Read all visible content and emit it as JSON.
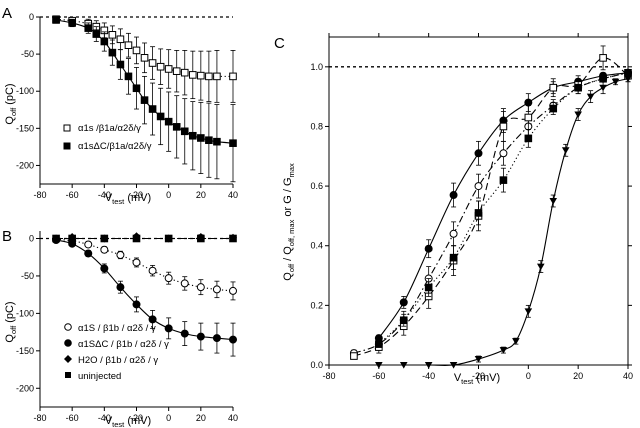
{
  "chart_data": [
    {
      "type": "scatter",
      "panel_label": "A",
      "xlabel": {
        "main": "V",
        "sub": "test",
        "unit": " (mV)"
      },
      "ylabel": {
        "main": "Q",
        "sub": "off",
        "unit": " (pC)"
      },
      "xlim": [
        -80,
        40
      ],
      "ylim": [
        -225,
        0
      ],
      "xticks": [
        -80,
        -60,
        -40,
        -20,
        0,
        20,
        40
      ],
      "yticks": [
        0,
        -50,
        -100,
        -150,
        -200
      ],
      "zero_line": true,
      "legend_position": "bottom-left",
      "series": [
        {
          "name": "α1s /β1a/α2δ/γ",
          "marker": "open-square",
          "line": "dotted",
          "x": [
            -70,
            -60,
            -50,
            -45,
            -40,
            -35,
            -30,
            -25,
            -20,
            -15,
            -10,
            -5,
            0,
            5,
            10,
            15,
            20,
            25,
            30,
            40
          ],
          "y": [
            -3,
            -5,
            -9,
            -13,
            -18,
            -24,
            -30,
            -38,
            -45,
            -55,
            -62,
            -67,
            -70,
            -73,
            -75,
            -78,
            -79,
            -80,
            -80,
            -80
          ],
          "err": [
            2,
            4,
            6,
            8,
            10,
            12,
            14,
            16,
            18,
            20,
            22,
            24,
            26,
            28,
            30,
            32,
            33,
            34,
            35,
            35
          ]
        },
        {
          "name": "α1sΔC/β1a/α2δ/γ",
          "marker": "filled-square",
          "line": "solid",
          "x": [
            -70,
            -60,
            -50,
            -45,
            -40,
            -35,
            -30,
            -25,
            -20,
            -15,
            -10,
            -5,
            0,
            5,
            10,
            15,
            20,
            25,
            30,
            40
          ],
          "y": [
            -4,
            -8,
            -15,
            -23,
            -33,
            -48,
            -64,
            -80,
            -96,
            -112,
            -124,
            -134,
            -141,
            -148,
            -154,
            -160,
            -163,
            -166,
            -168,
            -170
          ],
          "err": [
            3,
            5,
            7,
            10,
            13,
            17,
            20,
            24,
            28,
            32,
            35,
            38,
            40,
            42,
            44,
            46,
            48,
            50,
            50,
            52
          ]
        }
      ]
    },
    {
      "type": "scatter",
      "panel_label": "B",
      "xlabel": {
        "main": "V",
        "sub": "test",
        "unit": " (mV)"
      },
      "ylabel": {
        "main": "Q",
        "sub": "off",
        "unit": " (pC)"
      },
      "xlim": [
        -80,
        40
      ],
      "ylim": [
        -225,
        10
      ],
      "xticks": [
        -80,
        -60,
        -40,
        -20,
        0,
        20,
        40
      ],
      "yticks": [
        0,
        -50,
        -100,
        -150,
        -200
      ],
      "zero_line": true,
      "legend_position": "bottom-left",
      "series": [
        {
          "name": "α1S / β1b / α2δ / γ",
          "marker": "open-circle",
          "line": "dotted",
          "x": [
            -70,
            -60,
            -50,
            -40,
            -30,
            -20,
            -10,
            0,
            10,
            20,
            30,
            40
          ],
          "y": [
            -1,
            -3,
            -8,
            -15,
            -22,
            -32,
            -43,
            -53,
            -60,
            -65,
            -68,
            -70
          ],
          "err": [
            1,
            2,
            3,
            4,
            5,
            6,
            7,
            8,
            9,
            10,
            11,
            12
          ]
        },
        {
          "name": "α1SΔC / β1b / α2δ / γ",
          "marker": "filled-circle",
          "line": "solid",
          "x": [
            -70,
            -60,
            -50,
            -40,
            -30,
            -20,
            -10,
            0,
            10,
            20,
            30,
            40
          ],
          "y": [
            -2,
            -7,
            -20,
            -40,
            -65,
            -88,
            -108,
            -120,
            -127,
            -131,
            -133,
            -135
          ],
          "err": [
            1,
            2,
            4,
            6,
            8,
            10,
            12,
            14,
            16,
            18,
            20,
            22
          ]
        },
        {
          "name": "H2O / β1b / α2δ / γ",
          "marker": "filled-diamond",
          "line": "none",
          "x": [
            -70,
            -60,
            -40,
            -20,
            0,
            20,
            40
          ],
          "y": [
            0,
            2,
            0,
            3,
            0,
            2,
            1
          ],
          "err": [
            1,
            2,
            1,
            2,
            1,
            3,
            2
          ]
        },
        {
          "name": "uninjected",
          "marker": "filled-square",
          "line": "dashed",
          "x": [
            -70,
            -60,
            -40,
            -20,
            0,
            20,
            40
          ],
          "y": [
            0,
            0,
            0,
            0,
            0,
            0,
            0
          ],
          "err": [
            1,
            1,
            1,
            1,
            1,
            1,
            1
          ]
        }
      ]
    },
    {
      "type": "scatter",
      "panel_label": "C",
      "xlabel": {
        "main": "V",
        "sub": "test",
        "unit": " (mV)"
      },
      "ylabel": {
        "p1": "Q",
        "s1": "off",
        "p2": " / Q",
        "s2": "off, max",
        "p3": "  or  G / G",
        "s3": "max"
      },
      "xlim": [
        -80,
        40
      ],
      "ylim": [
        0,
        1.1
      ],
      "xticks": [
        -80,
        -60,
        -40,
        -20,
        0,
        20,
        40
      ],
      "yticks": [
        0.0,
        0.2,
        0.4,
        0.6,
        0.8,
        1.0
      ],
      "reference_line_y": 1.0,
      "series": [
        {
          "marker": "filled-circle",
          "line": "solid",
          "x": [
            -60,
            -50,
            -40,
            -30,
            -20,
            -10,
            0,
            10,
            20,
            30,
            40
          ],
          "y": [
            0.09,
            0.21,
            0.39,
            0.57,
            0.71,
            0.82,
            0.88,
            0.93,
            0.95,
            0.97,
            0.98
          ],
          "err": [
            0.01,
            0.02,
            0.03,
            0.04,
            0.04,
            0.04,
            0.03,
            0.02,
            0.02,
            0.01,
            0.01
          ]
        },
        {
          "marker": "open-circle",
          "line": "dash-dot",
          "x": [
            -70,
            -60,
            -50,
            -40,
            -30,
            -20,
            -10,
            0,
            10,
            20,
            30,
            40
          ],
          "y": [
            0.04,
            0.07,
            0.15,
            0.29,
            0.44,
            0.6,
            0.71,
            0.8,
            0.87,
            0.93,
            0.96,
            0.98
          ],
          "err": [
            0.01,
            0.02,
            0.03,
            0.04,
            0.04,
            0.04,
            0.04,
            0.03,
            0.02,
            0.02,
            0.01,
            0.01
          ]
        },
        {
          "marker": "open-square",
          "line": "dashed",
          "x": [
            -70,
            -60,
            -50,
            -40,
            -30,
            -20,
            -10,
            0,
            10,
            20,
            30,
            40
          ],
          "y": [
            0.03,
            0.06,
            0.13,
            0.23,
            0.35,
            0.5,
            0.8,
            0.83,
            0.93,
            0.94,
            1.03,
            0.97
          ],
          "err": [
            0.01,
            0.02,
            0.03,
            0.04,
            0.05,
            0.05,
            0.05,
            0.04,
            0.03,
            0.02,
            0.04,
            0.02
          ]
        },
        {
          "marker": "filled-square",
          "line": "dotted",
          "x": [
            -60,
            -50,
            -40,
            -30,
            -20,
            -10,
            0,
            10,
            20,
            30,
            40
          ],
          "y": [
            0.07,
            0.15,
            0.26,
            0.36,
            0.51,
            0.62,
            0.76,
            0.86,
            0.93,
            0.96,
            0.98
          ],
          "err": [
            0.01,
            0.02,
            0.03,
            0.04,
            0.04,
            0.04,
            0.03,
            0.02,
            0.02,
            0.01,
            0.01
          ]
        },
        {
          "marker": "filled-triangle-down",
          "line": "solid",
          "x": [
            -60,
            -50,
            -40,
            -30,
            -20,
            -10,
            -5,
            0,
            5,
            10,
            15,
            20,
            25,
            30,
            35,
            40
          ],
          "y": [
            0.0,
            0.0,
            0.0,
            0.0,
            0.02,
            0.05,
            0.08,
            0.18,
            0.33,
            0.55,
            0.72,
            0.84,
            0.9,
            0.93,
            0.95,
            0.96
          ],
          "err": [
            0.0,
            0.0,
            0.0,
            0.0,
            0.01,
            0.01,
            0.01,
            0.02,
            0.02,
            0.02,
            0.02,
            0.02,
            0.02,
            0.02,
            0.01,
            0.01
          ]
        }
      ]
    }
  ]
}
